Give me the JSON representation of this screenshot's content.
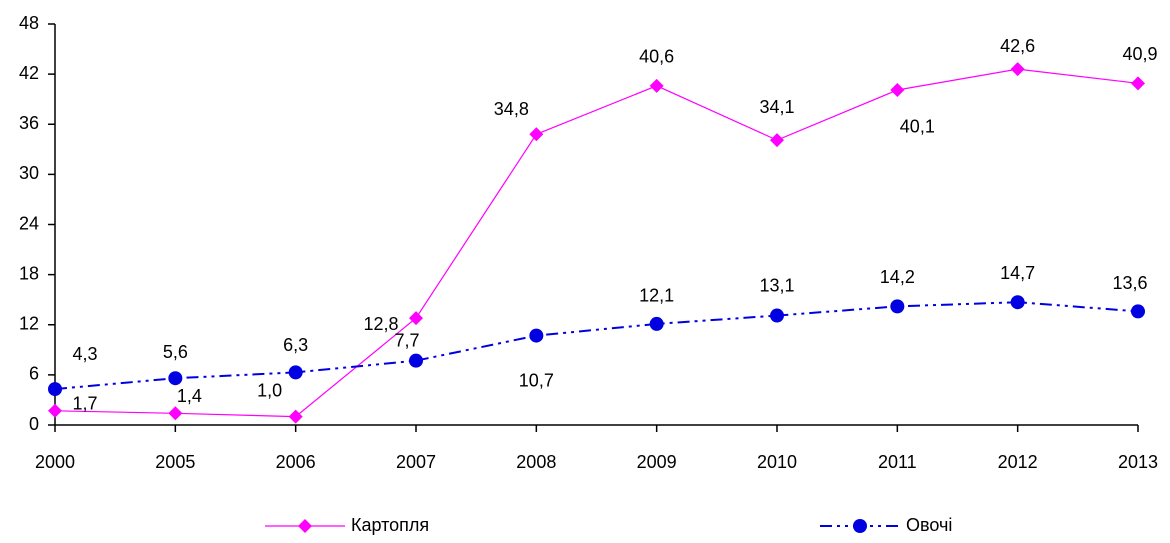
{
  "chart_data": {
    "type": "line",
    "categories": [
      "2000",
      "2005",
      "2006",
      "2007",
      "2008",
      "2009",
      "2010",
      "2011",
      "2012",
      "2013"
    ],
    "series": [
      {
        "name": "Картопля",
        "color": "#ff00ff",
        "marker": "diamond",
        "line_style": "solid",
        "values": [
          1.7,
          1.4,
          1.0,
          12.8,
          34.8,
          40.6,
          34.1,
          40.1,
          42.6,
          40.9
        ],
        "value_labels": [
          "1,7",
          "1,4",
          "1,0",
          "12,8",
          "34,8",
          "40,6",
          "34,1",
          "40,1",
          "42,6",
          "40,9"
        ]
      },
      {
        "name": "Овочі",
        "color": "#0000e0",
        "marker": "circle",
        "line_style": "dash-dot-dot",
        "values": [
          4.3,
          5.6,
          6.3,
          7.7,
          10.7,
          12.1,
          13.1,
          14.2,
          14.7,
          13.6
        ],
        "value_labels": [
          "4,3",
          "5,6",
          "6,3",
          "7,7",
          "10,7",
          "12,1",
          "13,1",
          "14,2",
          "14,7",
          "13,6"
        ]
      }
    ],
    "ylim": [
      0,
      48
    ],
    "yticks": [
      0,
      6,
      12,
      18,
      24,
      30,
      36,
      42,
      48
    ],
    "grid": false,
    "legend": "bottom"
  }
}
